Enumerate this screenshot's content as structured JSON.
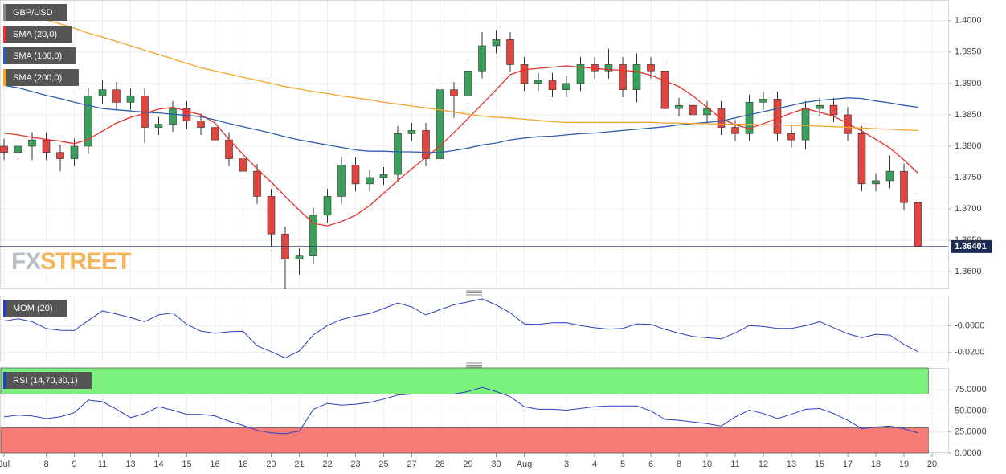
{
  "chart_data": [
    {
      "type": "candlestick",
      "title": "GBP/USD",
      "logo_prefix": "FX",
      "logo_suffix": "STREET",
      "categories": [
        "Jul",
        null,
        null,
        "8",
        null,
        "9",
        null,
        "11",
        null,
        "13",
        null,
        "14",
        null,
        "15",
        null,
        "16",
        null,
        "18",
        null,
        "20",
        null,
        "21",
        null,
        "22",
        null,
        "23",
        null,
        "25",
        null,
        "27",
        null,
        "28",
        null,
        "29",
        null,
        "30",
        null,
        "Aug",
        null,
        null,
        "3",
        null,
        "4",
        null,
        "5",
        null,
        "6",
        null,
        "8",
        null,
        "10",
        null,
        "11",
        null,
        "12",
        null,
        "13",
        null,
        "15",
        null,
        "17",
        null,
        "18",
        null,
        "19",
        null,
        "20"
      ],
      "open": [
        1.38,
        1.379,
        1.38,
        1.381,
        1.379,
        1.378,
        1.38,
        1.388,
        1.389,
        1.387,
        1.388,
        1.383,
        1.3835,
        1.386,
        1.384,
        1.383,
        1.381,
        1.378,
        1.376,
        1.372,
        1.366,
        1.362,
        1.3625,
        1.369,
        1.372,
        1.377,
        1.374,
        1.375,
        1.3755,
        1.382,
        1.3825,
        1.378,
        1.389,
        1.388,
        1.392,
        1.396,
        1.397,
        1.393,
        1.39,
        1.3905,
        1.389,
        1.39,
        1.393,
        1.392,
        1.393,
        1.389,
        1.393,
        1.392,
        1.386,
        1.3865,
        1.385,
        1.386,
        1.383,
        1.382,
        1.387,
        1.3875,
        1.382,
        1.381,
        1.386,
        1.3865,
        1.385,
        1.382,
        1.374,
        1.3745,
        1.376,
        1.371,
        null
      ],
      "high": [
        1.3812,
        1.3812,
        1.3822,
        1.3822,
        1.3802,
        1.3812,
        1.3892,
        1.3905,
        1.3902,
        1.3892,
        1.3892,
        1.3847,
        1.3872,
        1.3872,
        1.3852,
        1.3842,
        1.3822,
        1.3792,
        1.3772,
        1.3732,
        1.3672,
        1.3637,
        1.3702,
        1.3732,
        1.3782,
        1.3782,
        1.3762,
        1.3767,
        1.3832,
        1.3837,
        1.3837,
        1.3902,
        1.3902,
        1.3932,
        1.3982,
        1.3985,
        1.3982,
        1.3942,
        1.3917,
        1.3917,
        1.3912,
        1.3942,
        1.3942,
        1.3955,
        1.3942,
        1.3948,
        1.3942,
        1.3932,
        1.3877,
        1.3877,
        1.3872,
        1.3872,
        1.3842,
        1.3882,
        1.3887,
        1.3887,
        1.3832,
        1.3872,
        1.3877,
        1.3877,
        1.3862,
        1.3832,
        1.3757,
        1.3785,
        1.3772,
        1.3722,
        null
      ],
      "low": [
        1.3778,
        1.3778,
        1.3778,
        1.3778,
        1.376,
        1.3768,
        1.3788,
        1.3868,
        1.3858,
        1.3858,
        1.3805,
        1.3818,
        1.3823,
        1.3828,
        1.3818,
        1.3798,
        1.3768,
        1.3748,
        1.3708,
        1.364,
        1.3572,
        1.3595,
        1.3613,
        1.3678,
        1.3708,
        1.3728,
        1.3728,
        1.3738,
        1.3743,
        1.3808,
        1.3768,
        1.3768,
        1.3845,
        1.3868,
        1.3908,
        1.3948,
        1.3918,
        1.3888,
        1.3888,
        1.3878,
        1.3878,
        1.3888,
        1.3908,
        1.3908,
        1.3878,
        1.387,
        1.3908,
        1.3848,
        1.3848,
        1.3838,
        1.3838,
        1.3818,
        1.3808,
        1.3808,
        1.3858,
        1.3808,
        1.3798,
        1.3795,
        1.3848,
        1.3838,
        1.3808,
        1.3728,
        1.3728,
        1.3733,
        1.3698,
        1.3635,
        null
      ],
      "close": [
        1.379,
        1.38,
        1.381,
        1.379,
        1.378,
        1.38,
        1.388,
        1.389,
        1.387,
        1.388,
        1.383,
        1.3835,
        1.386,
        1.384,
        1.383,
        1.381,
        1.378,
        1.376,
        1.372,
        1.366,
        1.362,
        1.3625,
        1.369,
        1.372,
        1.377,
        1.374,
        1.375,
        1.3755,
        1.382,
        1.3825,
        1.378,
        1.389,
        1.388,
        1.392,
        1.396,
        1.397,
        1.393,
        1.39,
        1.3905,
        1.389,
        1.39,
        1.393,
        1.392,
        1.393,
        1.389,
        1.393,
        1.392,
        1.386,
        1.3865,
        1.385,
        1.386,
        1.383,
        1.382,
        1.387,
        1.3875,
        1.382,
        1.381,
        1.386,
        1.3865,
        1.385,
        1.382,
        1.374,
        1.3745,
        1.376,
        1.371,
        1.364,
        null
      ],
      "up_color": "#38a05a",
      "down_color": "#e0453f",
      "series": [
        {
          "name": "SMA (20,0)",
          "color": "#e8302c",
          "values": [
            1.3821,
            1.3818,
            1.3814,
            1.3811,
            1.3808,
            1.3804,
            1.3811,
            1.3824,
            1.3837,
            1.3846,
            1.3852,
            1.3859,
            1.3862,
            1.3856,
            1.385,
            1.3837,
            1.3811,
            1.3787,
            1.3764,
            1.3743,
            1.372,
            1.3698,
            1.3677,
            1.3673,
            1.368,
            1.369,
            1.3705,
            1.3725,
            1.3745,
            1.3764,
            1.3782,
            1.38,
            1.3822,
            1.3844,
            1.3867,
            1.389,
            1.3914,
            1.3922,
            1.3924,
            1.3926,
            1.3928,
            1.3926,
            1.3924,
            1.3922,
            1.3921,
            1.3919,
            1.3913,
            1.3904,
            1.3895,
            1.388,
            1.3862,
            1.3844,
            1.3834,
            1.3828,
            1.3836,
            1.3844,
            1.3853,
            1.386,
            1.3854,
            1.3848,
            1.3836,
            1.3824,
            1.3811,
            1.3797,
            1.3778,
            1.3757,
            null
          ]
        },
        {
          "name": "SMA (100,0)",
          "color": "#2a5fb0",
          "values": [
            1.3897,
            1.3893,
            1.3887,
            1.3881,
            1.3876,
            1.387,
            1.3865,
            1.386,
            1.3858,
            1.3856,
            1.3854,
            1.3853,
            1.3851,
            1.3849,
            1.3847,
            1.3842,
            1.3836,
            1.3831,
            1.3826,
            1.3821,
            1.3815,
            1.381,
            1.3806,
            1.3802,
            1.3798,
            1.3794,
            1.3792,
            1.3792,
            1.3791,
            1.3791,
            1.379,
            1.379,
            1.3793,
            1.3797,
            1.3802,
            1.3805,
            1.381,
            1.3813,
            1.3815,
            1.3816,
            1.3818,
            1.382,
            1.3821,
            1.3823,
            1.3825,
            1.3827,
            1.3829,
            1.3831,
            1.3834,
            1.3836,
            1.3838,
            1.384,
            1.3845,
            1.385,
            1.3855,
            1.386,
            1.3865,
            1.387,
            1.3873,
            1.3875,
            1.3877,
            1.3876,
            1.3872,
            1.3869,
            1.3865,
            1.3862,
            null
          ]
        },
        {
          "name": "SMA (200,0)",
          "color": "#f5a42a",
          "values": [
            1.402,
            1.4014,
            1.4007,
            1.4001,
            1.3995,
            1.3988,
            1.398,
            1.3974,
            1.3967,
            1.396,
            1.3953,
            1.3946,
            1.3939,
            1.3932,
            1.3925,
            1.392,
            1.3915,
            1.391,
            1.3905,
            1.39,
            1.3895,
            1.3891,
            1.3887,
            1.3884,
            1.388,
            1.3877,
            1.3874,
            1.387,
            1.3867,
            1.3864,
            1.3861,
            1.3858,
            1.3854,
            1.3851,
            1.3848,
            1.3846,
            1.3845,
            1.3843,
            1.3841,
            1.3839,
            1.3838,
            1.3838,
            1.3838,
            1.3838,
            1.3838,
            1.3838,
            1.3838,
            1.3837,
            1.3837,
            1.3836,
            1.3836,
            1.3835,
            1.3835,
            1.3835,
            1.3834,
            1.3834,
            1.3833,
            1.3833,
            1.3832,
            1.3831,
            1.383,
            1.3829,
            1.3828,
            1.3827,
            1.3826,
            1.3825,
            null
          ]
        }
      ],
      "last_value": 1.36401,
      "last_color": "#1b2a55",
      "ylim": [
        1.3572,
        1.4033
      ],
      "yticks": [
        {
          "value": 1.36,
          "label": "1.3600"
        },
        {
          "value": 1.365,
          "label": "1.3650"
        },
        {
          "value": 1.37,
          "label": "1.3700"
        },
        {
          "value": 1.375,
          "label": "1.3750"
        },
        {
          "value": 1.38,
          "label": "1.3800"
        },
        {
          "value": 1.385,
          "label": "1.3850"
        },
        {
          "value": 1.39,
          "label": "1.3900"
        },
        {
          "value": 1.395,
          "label": "1.3950"
        },
        {
          "value": 1.4,
          "label": "1.4000"
        }
      ],
      "grid": true
    },
    {
      "type": "line",
      "title": "MOM (20)",
      "color": "#2a3fc0",
      "values": [
        0.0035,
        0.0052,
        0.003,
        -0.0021,
        -0.0034,
        -0.0036,
        0.004,
        0.0111,
        0.0087,
        0.006,
        0.003,
        0.0081,
        0.0095,
        0.001,
        -0.004,
        -0.0057,
        -0.0045,
        -0.0042,
        -0.015,
        -0.0194,
        -0.024,
        -0.0189,
        -0.0068,
        0.0001,
        0.0047,
        0.0072,
        0.009,
        0.0128,
        0.0169,
        0.014,
        0.008,
        0.012,
        0.0156,
        0.0178,
        0.02,
        0.0155,
        0.0096,
        0.0014,
        0.001,
        0.0022,
        0.0023,
        0.0001,
        -0.0015,
        -0.0025,
        -0.002,
        0.0014,
        0.001,
        -0.0027,
        -0.0055,
        -0.0081,
        -0.009,
        -0.0098,
        -0.0053,
        0.0001,
        -0.0006,
        -0.002,
        -0.002,
        0.0,
        0.003,
        -0.0015,
        -0.006,
        -0.0089,
        -0.0064,
        -0.007,
        -0.014,
        -0.0194,
        null
      ],
      "ylim": [
        -0.0273,
        0.0224
      ],
      "yticks": [
        {
          "value": 0,
          "label": "-0.0000"
        },
        {
          "value": -0.02,
          "label": "-0.0200"
        }
      ]
    },
    {
      "type": "line",
      "title": "RSI (14,70,30,1)",
      "color": "#2a3fc0",
      "values": [
        43,
        45,
        44,
        41,
        43,
        48,
        63,
        61,
        52,
        42,
        47,
        55,
        51,
        46,
        46,
        44,
        38,
        33,
        27,
        24,
        23,
        26,
        52,
        59,
        57,
        58,
        60,
        64,
        69,
        70,
        70,
        70,
        70,
        73,
        78,
        73,
        67,
        55,
        52,
        52,
        51,
        53,
        55,
        56,
        56,
        56,
        50,
        40,
        39,
        37,
        35,
        32,
        43,
        51,
        47,
        41,
        46,
        52,
        53,
        47,
        39,
        29,
        31,
        32,
        29,
        24,
        null
      ],
      "overbought": 70,
      "oversold": 30,
      "overbought_color": "#7cf27c",
      "oversold_color": "#f77c78",
      "ylim": [
        0,
        101
      ],
      "yticks": [
        {
          "value": 75,
          "label": "75.0000"
        },
        {
          "value": 50,
          "label": "50.0000"
        },
        {
          "value": 25,
          "label": "25.0000"
        },
        {
          "value": 0,
          "label": "0.0000"
        }
      ]
    }
  ]
}
